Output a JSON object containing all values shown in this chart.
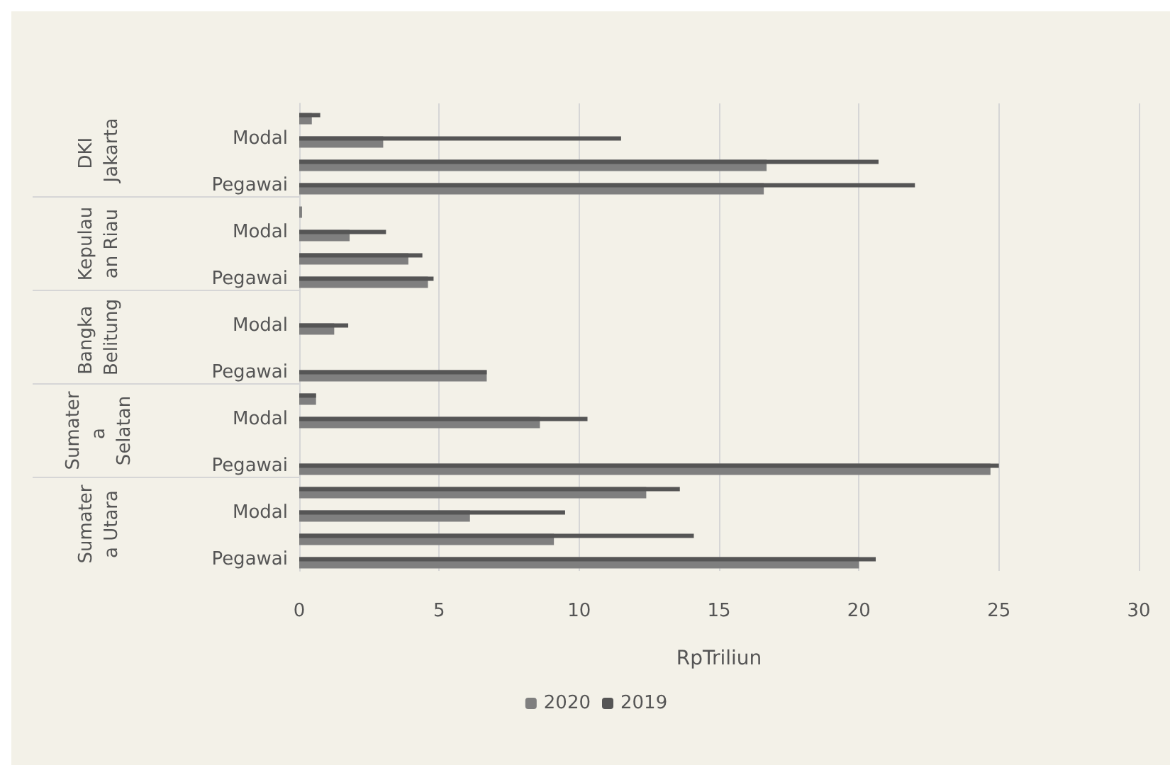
{
  "chart_data": {
    "type": "bar",
    "orientation": "horizontal",
    "xlabel": "RpTriliun",
    "categories": [
      null,
      "Modal",
      null,
      "Pegawai",
      null,
      "Modal",
      null,
      "Pegawai",
      null,
      "Modal",
      null,
      "Pegawai",
      null,
      "Modal",
      null,
      "Pegawai",
      null,
      "Modal",
      null,
      "Pegawai"
    ],
    "annotations": [
      "DKI Jakarta",
      "Kepulauan Riau",
      "Bangka Belitung",
      "Sumatera Selatan",
      "Sumatera Utara"
    ],
    "series": [
      {
        "name": "2020",
        "color": "#7f7f7f",
        "values": [
          0.45,
          3.0,
          16.7,
          16.6,
          0.1,
          1.8,
          3.9,
          4.6,
          null,
          1.25,
          null,
          6.7,
          0.6,
          8.6,
          null,
          24.7,
          12.4,
          6.1,
          9.1,
          20.0
        ]
      },
      {
        "name": "2019",
        "color": "#555555",
        "values": [
          0.75,
          11.5,
          20.7,
          22.0,
          null,
          3.1,
          4.4,
          4.8,
          null,
          1.75,
          null,
          6.7,
          0.6,
          10.3,
          null,
          25.0,
          13.6,
          9.5,
          14.1,
          20.6
        ]
      }
    ],
    "xlim": [
      0,
      30
    ],
    "xticks": [
      0,
      5,
      10,
      15,
      20,
      25,
      30
    ],
    "grid": "x",
    "legend": "bottom"
  }
}
